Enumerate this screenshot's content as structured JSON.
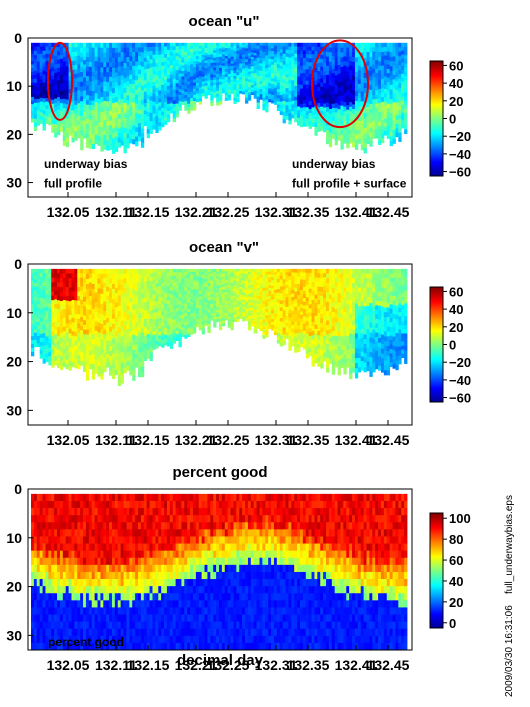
{
  "stamp": "2009/03/30 16:31:06",
  "filename": "full_underwaybias.eps",
  "chart_data": [
    {
      "type": "heatmap",
      "title": "ocean \"u\"",
      "x_tick_labels": [
        "132.05",
        "132.11",
        "132.15",
        "132.21",
        "132.25",
        "132.31",
        "132.35",
        "132.41",
        "132.45"
      ],
      "y_tick_labels": [
        "0",
        "10",
        "20",
        "30"
      ],
      "ylim": [
        33,
        0
      ],
      "xlim": [
        132.0,
        132.48
      ],
      "colorbar": {
        "ticks": [
          "60",
          "40",
          "20",
          "0",
          "−20",
          "−40",
          "−60"
        ],
        "range": [
          -65,
          65
        ],
        "colormap": "jet"
      },
      "field_description_hidden": true,
      "annotations": [
        {
          "text": "underway bias",
          "x": 132.02,
          "y": 27
        },
        {
          "text": "full profile",
          "x": 132.02,
          "y": 31
        },
        {
          "text": "underway bias",
          "x": 132.33,
          "y": 27
        },
        {
          "text": "full profile + surface",
          "x": 132.33,
          "y": 31
        }
      ],
      "highlight_ellipses": [
        {
          "cx": 132.04,
          "cy": 9,
          "rx": 0.015,
          "ry": 8
        },
        {
          "cx": 132.39,
          "cy": 9.5,
          "rx": 0.035,
          "ry": 9
        }
      ]
    },
    {
      "type": "heatmap",
      "title": "ocean \"v\"",
      "x_tick_labels": [
        "132.05",
        "132.11",
        "132.15",
        "132.21",
        "132.25",
        "132.31",
        "132.35",
        "132.41",
        "132.45"
      ],
      "y_tick_labels": [
        "0",
        "10",
        "20",
        "30"
      ],
      "ylim": [
        33,
        0
      ],
      "xlim": [
        132.0,
        132.48
      ],
      "colorbar": {
        "ticks": [
          "60",
          "40",
          "20",
          "0",
          "−20",
          "−40",
          "−60"
        ],
        "range": [
          -65,
          65
        ],
        "colormap": "jet"
      }
    },
    {
      "type": "heatmap",
      "title": "percent good",
      "xlabel": "decimal day",
      "corner_label": "percent good",
      "x_tick_labels": [
        "132.05",
        "132.11",
        "132.15",
        "132.21",
        "132.25",
        "132.31",
        "132.35",
        "132.41",
        "132.45"
      ],
      "y_tick_labels": [
        "0",
        "10",
        "20",
        "30"
      ],
      "ylim": [
        33,
        0
      ],
      "xlim": [
        132.0,
        132.48
      ],
      "colorbar": {
        "ticks": [
          "100",
          "80",
          "60",
          "40",
          "20",
          "0"
        ],
        "range": [
          -5,
          105
        ],
        "colormap": "jet"
      }
    }
  ]
}
